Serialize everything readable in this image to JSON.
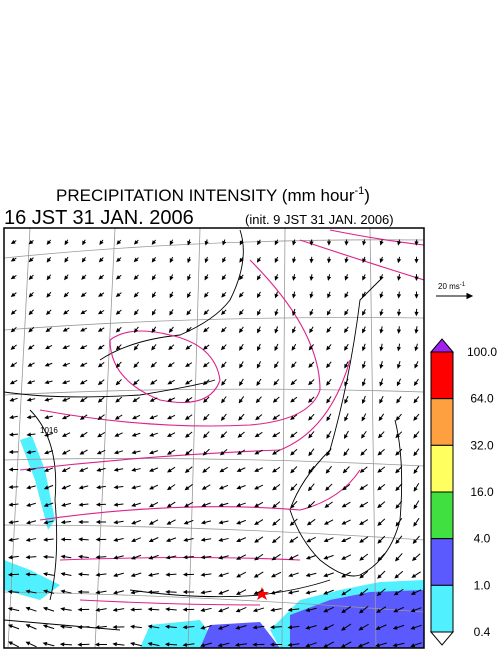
{
  "header": {
    "title": "PRECIPITATION INTENSITY (mm hour",
    "title_exponent": "-1",
    "title_close": ")",
    "valid_time": "16 JST 31 JAN. 2006",
    "init_time": "(init. 9 JST 31 JAN. 2006)"
  },
  "wind_scale": {
    "label": "20 ms",
    "exponent": "-1"
  },
  "contour_label": "1016",
  "colorbar": {
    "top_color": "#a020f0",
    "bottom_color": "#ffffff",
    "segments": [
      {
        "color": "#ff0000"
      },
      {
        "color": "#ffa040"
      },
      {
        "color": "#ffff60"
      },
      {
        "color": "#40e040"
      },
      {
        "color": "#5a5aff"
      },
      {
        "color": "#50f0ff"
      }
    ],
    "labels": [
      "100.0",
      "64.0",
      "32.0",
      "16.0",
      "4.0",
      "1.0",
      "0.4"
    ]
  }
}
